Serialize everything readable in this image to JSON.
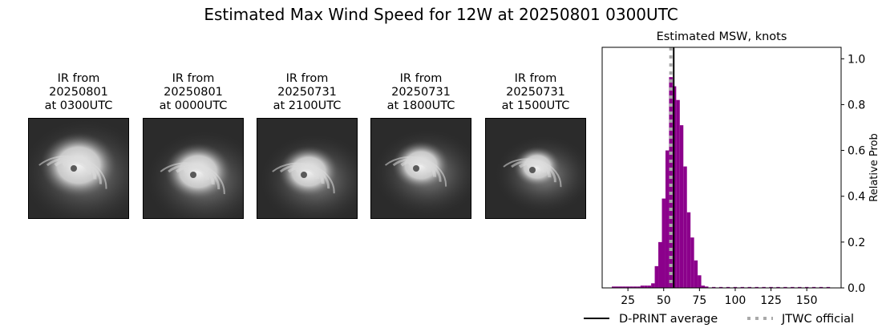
{
  "title": "Estimated Max Wind Speed for 12W at 20250801 0300UTC",
  "ir_panels": [
    {
      "line1": "IR from",
      "line2": "20250801",
      "line3": "at 0300UTC"
    },
    {
      "line1": "IR from",
      "line2": "20250801",
      "line3": "at 0000UTC"
    },
    {
      "line1": "IR from",
      "line2": "20250731",
      "line3": "at 2100UTC"
    },
    {
      "line1": "IR from",
      "line2": "20250731",
      "line3": "at 1800UTC"
    },
    {
      "line1": "IR from",
      "line2": "20250731",
      "line3": "at 1500UTC"
    }
  ],
  "chart_data": {
    "type": "bar",
    "title": "Estimated MSW, knots",
    "xlabel": "",
    "ylabel": "Relative Prob",
    "xlim": [
      7,
      174
    ],
    "ylim": [
      0,
      1.05
    ],
    "xticks": [
      25,
      50,
      75,
      100,
      125,
      150
    ],
    "yticks": [
      0.0,
      0.2,
      0.4,
      0.6,
      0.8,
      1.0
    ],
    "y_axis_side": "right",
    "bar_color": "#8b008b",
    "bin_width": 2.5,
    "bins": [
      {
        "x": 15,
        "value": 0.006
      },
      {
        "x": 17.5,
        "value": 0.006
      },
      {
        "x": 20,
        "value": 0.006
      },
      {
        "x": 22.5,
        "value": 0.006
      },
      {
        "x": 25,
        "value": 0.006
      },
      {
        "x": 27.5,
        "value": 0.006
      },
      {
        "x": 30,
        "value": 0.006
      },
      {
        "x": 32.5,
        "value": 0.006
      },
      {
        "x": 35,
        "value": 0.01
      },
      {
        "x": 37.5,
        "value": 0.01
      },
      {
        "x": 40,
        "value": 0.01
      },
      {
        "x": 42.5,
        "value": 0.02
      },
      {
        "x": 45,
        "value": 0.095
      },
      {
        "x": 47.5,
        "value": 0.2
      },
      {
        "x": 50,
        "value": 0.39
      },
      {
        "x": 52.5,
        "value": 0.6
      },
      {
        "x": 55,
        "value": 0.92
      },
      {
        "x": 57.5,
        "value": 0.88
      },
      {
        "x": 60,
        "value": 0.82
      },
      {
        "x": 62.5,
        "value": 0.71
      },
      {
        "x": 65,
        "value": 0.53
      },
      {
        "x": 67.5,
        "value": 0.33
      },
      {
        "x": 70,
        "value": 0.22
      },
      {
        "x": 72.5,
        "value": 0.12
      },
      {
        "x": 75,
        "value": 0.055
      },
      {
        "x": 77.5,
        "value": 0.01
      },
      {
        "x": 80,
        "value": 0.006
      },
      {
        "x": 85,
        "value": 0.004
      },
      {
        "x": 90,
        "value": 0.004
      },
      {
        "x": 95,
        "value": 0.004
      },
      {
        "x": 100,
        "value": 0.004
      },
      {
        "x": 105,
        "value": 0.004
      },
      {
        "x": 110,
        "value": 0.004
      },
      {
        "x": 115,
        "value": 0.004
      },
      {
        "x": 120,
        "value": 0.004
      },
      {
        "x": 125,
        "value": 0.004
      },
      {
        "x": 130,
        "value": 0.004
      },
      {
        "x": 135,
        "value": 0.004
      },
      {
        "x": 140,
        "value": 0.004
      },
      {
        "x": 145,
        "value": 0.004
      },
      {
        "x": 150,
        "value": 0.004
      },
      {
        "x": 155,
        "value": 0.004
      },
      {
        "x": 160,
        "value": 0.004
      },
      {
        "x": 165,
        "value": 0.004
      }
    ],
    "dprint_average": 57,
    "jtwc_official": 55,
    "legend": [
      {
        "label": "D-PRINT average",
        "style": "solid",
        "color": "#000000"
      },
      {
        "label": "JTWC official",
        "style": "dotted",
        "color": "#a9a9a9"
      }
    ],
    "legend_position": "below-right"
  }
}
